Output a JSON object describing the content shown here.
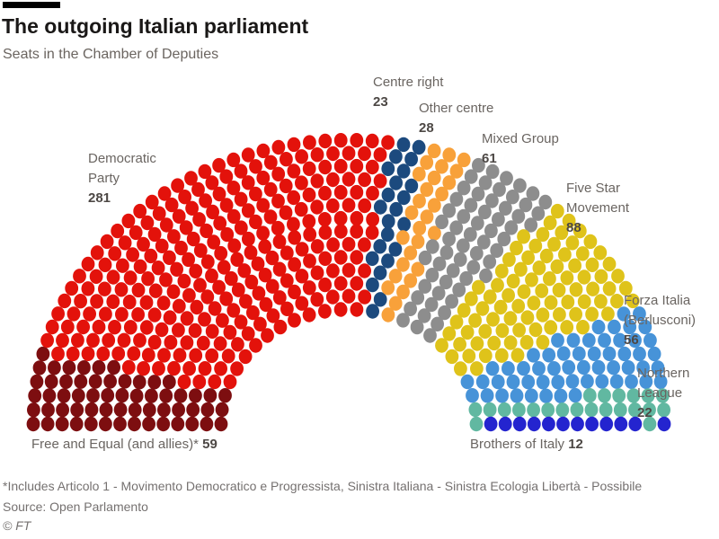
{
  "header": {
    "title": "The outgoing Italian parliament",
    "subtitle": "Seats in the Chamber of Deputies"
  },
  "chart_data": {
    "type": "parliament-hemicycle",
    "title": "The outgoing Italian parliament",
    "subtitle": "Seats in the Chamber of Deputies",
    "total_seats": 630,
    "shape": "semicircle",
    "fill_order": "left-to-right-by-angle",
    "parties": [
      {
        "name": "Free and Equal (and allies)*",
        "seats": 59,
        "color": "#7d0e10"
      },
      {
        "name": "Democratic Party",
        "seats": 281,
        "color": "#e3120b"
      },
      {
        "name": "Centre right",
        "seats": 23,
        "color": "#1c4a7e"
      },
      {
        "name": "Other centre",
        "seats": 28,
        "color": "#f8a13a"
      },
      {
        "name": "Mixed Group",
        "seats": 61,
        "color": "#8d8d8d"
      },
      {
        "name": "Five Star Movement",
        "seats": 88,
        "color": "#dfc31a"
      },
      {
        "name": "Forza Italia (Berlusconi)",
        "seats": 56,
        "color": "#4793d8"
      },
      {
        "name": "Northern League",
        "seats": 22,
        "color": "#61b8a1"
      },
      {
        "name": "Brothers of Italy",
        "seats": 12,
        "color": "#2424cf"
      }
    ]
  },
  "labels": {
    "democratic_party": {
      "line1": "Democratic",
      "line2": "Party",
      "value": "281"
    },
    "centre_right": {
      "line1": "Centre right",
      "value": "23"
    },
    "other_centre": {
      "line1": "Other centre",
      "value": "28"
    },
    "mixed_group": {
      "line1": "Mixed Group",
      "value": "61"
    },
    "five_star": {
      "line1": "Five Star",
      "line2": "Movement",
      "value": "88"
    },
    "forza_italia": {
      "line1": "Forza Italia",
      "line2": "(Berlusconi)",
      "value": "56"
    },
    "northern_league": {
      "line1": "Northern",
      "line2": "League",
      "value": "22"
    },
    "free_equal": {
      "text": "Free and Equal (and allies)*",
      "value": "59"
    },
    "brothers": {
      "text": "Brothers of Italy",
      "value": "12"
    }
  },
  "footer": {
    "footnote": "*Includes Articolo 1 - Movimento Democratico e Progressista, Sinistra Italiana - Sinistra Ecologia Libertà - Possibile",
    "source": "Source: Open Parlamento",
    "copyright": "© FT"
  }
}
